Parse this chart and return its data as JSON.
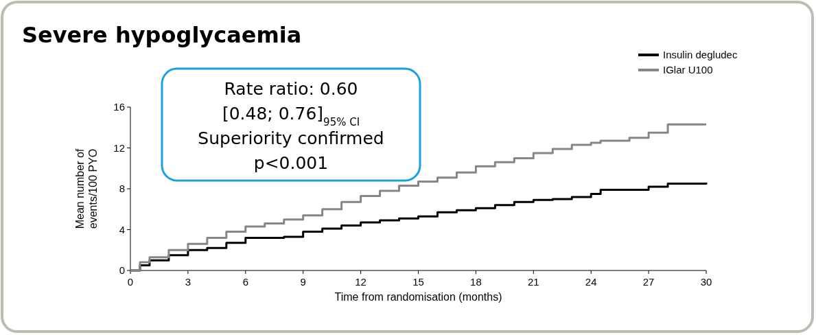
{
  "chart_data": {
    "type": "step",
    "title": "Severe hypoglycaemia",
    "xlabel": "Time from randomisation (months)",
    "ylabel": "Mean number of\nevents/100 PYO",
    "annotations": [
      "Rate ratio: 0.60",
      "[0.48; 0.76]$_{95% CI}$",
      "Superiority confirmed",
      "p<0.001"
    ],
    "xlim": [
      0,
      30
    ],
    "xticks": [
      0,
      3,
      6,
      9,
      12,
      15,
      18,
      21,
      24,
      27,
      30
    ],
    "ylim": [
      0,
      16
    ],
    "yticks": [
      0,
      4,
      8,
      12,
      16
    ],
    "grid": false,
    "legend": "top right",
    "x": [
      0,
      0.5,
      1,
      2,
      3,
      4,
      5,
      6,
      7,
      8,
      9,
      10,
      11,
      12,
      13,
      14,
      15,
      16,
      17,
      18,
      19,
      20,
      21,
      22,
      23,
      24,
      24.5,
      26,
      27,
      28,
      30
    ],
    "series": [
      {
        "name": "Insulin degludec",
        "color": "#000000",
        "values": [
          0,
          0.5,
          1,
          1.5,
          2,
          2.2,
          2.7,
          3.2,
          3.2,
          3.3,
          3.8,
          4.1,
          4.4,
          4.7,
          4.9,
          5.1,
          5.3,
          5.7,
          5.9,
          6.1,
          6.4,
          6.7,
          6.9,
          7,
          7.2,
          7.5,
          7.9,
          7.9,
          8.2,
          8.5,
          8.6
        ]
      },
      {
        "name": "IGlar U100",
        "color": "#8c8480",
        "values": [
          0,
          0.8,
          1.3,
          2,
          2.6,
          3.2,
          3.8,
          4.3,
          4.6,
          5,
          5.4,
          6,
          6.7,
          7.3,
          7.8,
          8.3,
          8.7,
          9.1,
          9.6,
          10.2,
          10.6,
          11,
          11.5,
          11.9,
          12.3,
          12.5,
          12.7,
          13,
          13.5,
          14.3,
          14.3
        ]
      }
    ]
  }
}
